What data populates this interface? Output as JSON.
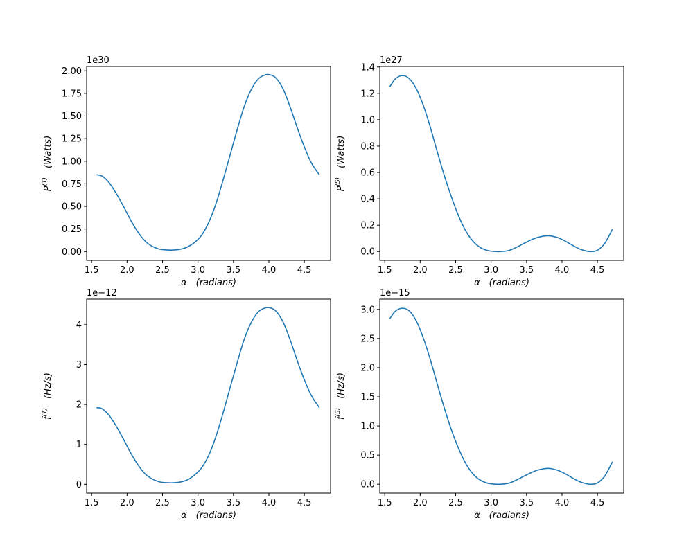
{
  "chart_data": [
    {
      "id": "PT",
      "type": "line",
      "offset_text": "1e30",
      "xlabel": {
        "var": "α",
        "unit": "(radians)"
      },
      "ylabel": {
        "base": "P",
        "sup": "(T)",
        "dot": false,
        "unit": "(Watts)"
      },
      "xlim": [
        1.43,
        4.87
      ],
      "ylim": [
        -0.0975,
        2.048
      ],
      "xticks": [
        1.5,
        2.0,
        2.5,
        3.0,
        3.5,
        4.0,
        4.5
      ],
      "xtick_labels": [
        "1.5",
        "2.0",
        "2.5",
        "3.0",
        "3.5",
        "4.0",
        "4.5"
      ],
      "yticks": [
        0.0,
        0.25,
        0.5,
        0.75,
        1.0,
        1.25,
        1.5,
        1.75,
        2.0
      ],
      "ytick_labels": [
        "0.00",
        "0.25",
        "0.50",
        "0.75",
        "1.00",
        "1.25",
        "1.50",
        "1.75",
        "2.00"
      ],
      "series": [
        {
          "color": "#1f77b4",
          "x": [
            1.571,
            1.65,
            1.75,
            1.85,
            1.95,
            2.05,
            2.15,
            2.25,
            2.35,
            2.45,
            2.55,
            2.65,
            2.75,
            2.85,
            2.95,
            3.05,
            3.15,
            3.25,
            3.35,
            3.45,
            3.55,
            3.65,
            3.75,
            3.85,
            3.95,
            4.02,
            4.1,
            4.2,
            4.3,
            4.4,
            4.5,
            4.6,
            4.712
          ],
          "y": [
            0.85,
            0.835,
            0.76,
            0.64,
            0.5,
            0.35,
            0.22,
            0.12,
            0.06,
            0.028,
            0.018,
            0.017,
            0.025,
            0.05,
            0.1,
            0.18,
            0.32,
            0.52,
            0.78,
            1.06,
            1.34,
            1.6,
            1.79,
            1.91,
            1.955,
            1.955,
            1.92,
            1.8,
            1.6,
            1.37,
            1.16,
            0.98,
            0.85
          ]
        }
      ]
    },
    {
      "id": "PS",
      "type": "line",
      "offset_text": "1e27",
      "xlabel": {
        "var": "α",
        "unit": "(radians)"
      },
      "ylabel": {
        "base": "P",
        "sup": "(S)",
        "dot": false,
        "unit": "(Watts)"
      },
      "xlim": [
        1.43,
        4.87
      ],
      "ylim": [
        -0.067,
        1.404
      ],
      "xticks": [
        1.5,
        2.0,
        2.5,
        3.0,
        3.5,
        4.0,
        4.5
      ],
      "xtick_labels": [
        "1.5",
        "2.0",
        "2.5",
        "3.0",
        "3.5",
        "4.0",
        "4.5"
      ],
      "yticks": [
        0.0,
        0.2,
        0.4,
        0.6,
        0.8,
        1.0,
        1.2,
        1.4
      ],
      "ytick_labels": [
        "0.0",
        "0.2",
        "0.4",
        "0.6",
        "0.8",
        "1.0",
        "1.2",
        "1.4"
      ],
      "series": [
        {
          "color": "#1f77b4",
          "x": [
            1.571,
            1.65,
            1.75,
            1.85,
            1.95,
            2.05,
            2.15,
            2.25,
            2.35,
            2.45,
            2.55,
            2.65,
            2.75,
            2.85,
            2.95,
            3.05,
            3.14,
            3.25,
            3.35,
            3.45,
            3.55,
            3.65,
            3.75,
            3.8,
            3.85,
            3.95,
            4.05,
            4.15,
            4.25,
            4.35,
            4.42,
            4.5,
            4.6,
            4.712
          ],
          "y": [
            1.25,
            1.31,
            1.335,
            1.31,
            1.23,
            1.1,
            0.93,
            0.74,
            0.56,
            0.4,
            0.26,
            0.15,
            0.075,
            0.03,
            0.008,
            0.001,
            0.0,
            0.008,
            0.03,
            0.058,
            0.085,
            0.106,
            0.118,
            0.12,
            0.118,
            0.104,
            0.078,
            0.047,
            0.019,
            0.003,
            0.0,
            0.01,
            0.06,
            0.17
          ]
        }
      ]
    },
    {
      "id": "fdotT",
      "type": "line",
      "offset_text": "1e−12",
      "xlabel": {
        "var": "α",
        "unit": "(radians)"
      },
      "ylabel": {
        "base": "f",
        "sup": "(T)",
        "dot": true,
        "unit": "(Hz/s)"
      },
      "xlim": [
        1.43,
        4.87
      ],
      "ylim": [
        -0.22,
        4.64
      ],
      "xticks": [
        1.5,
        2.0,
        2.5,
        3.0,
        3.5,
        4.0,
        4.5
      ],
      "xtick_labels": [
        "1.5",
        "2.0",
        "2.5",
        "3.0",
        "3.5",
        "4.0",
        "4.5"
      ],
      "yticks": [
        0,
        1,
        2,
        3,
        4
      ],
      "ytick_labels": [
        "0",
        "1",
        "2",
        "3",
        "4"
      ],
      "series": [
        {
          "color": "#1f77b4",
          "x": [
            1.571,
            1.65,
            1.75,
            1.85,
            1.95,
            2.05,
            2.15,
            2.25,
            2.35,
            2.45,
            2.55,
            2.65,
            2.75,
            2.85,
            2.95,
            3.05,
            3.15,
            3.25,
            3.35,
            3.45,
            3.55,
            3.65,
            3.75,
            3.85,
            3.95,
            4.02,
            4.1,
            4.2,
            4.3,
            4.4,
            4.5,
            4.6,
            4.712
          ],
          "y": [
            1.92,
            1.89,
            1.72,
            1.45,
            1.13,
            0.79,
            0.5,
            0.27,
            0.14,
            0.064,
            0.041,
            0.039,
            0.057,
            0.11,
            0.23,
            0.41,
            0.72,
            1.18,
            1.76,
            2.4,
            3.03,
            3.62,
            4.05,
            4.32,
            4.42,
            4.42,
            4.34,
            4.07,
            3.62,
            3.1,
            2.62,
            2.22,
            1.92
          ]
        }
      ]
    },
    {
      "id": "fdotS",
      "type": "line",
      "offset_text": "1e−15",
      "xlabel": {
        "var": "α",
        "unit": "(radians)"
      },
      "ylabel": {
        "base": "f",
        "sup": "(S)",
        "dot": true,
        "unit": "(Hz/s)"
      },
      "xlim": [
        1.43,
        4.87
      ],
      "ylim": [
        -0.152,
        3.176
      ],
      "xticks": [
        1.5,
        2.0,
        2.5,
        3.0,
        3.5,
        4.0,
        4.5
      ],
      "xtick_labels": [
        "1.5",
        "2.0",
        "2.5",
        "3.0",
        "3.5",
        "4.0",
        "4.5"
      ],
      "yticks": [
        0.0,
        0.5,
        1.0,
        1.5,
        2.0,
        2.5,
        3.0
      ],
      "ytick_labels": [
        "0.0",
        "0.5",
        "1.0",
        "1.5",
        "2.0",
        "2.5",
        "3.0"
      ],
      "series": [
        {
          "color": "#1f77b4",
          "x": [
            1.571,
            1.65,
            1.75,
            1.85,
            1.95,
            2.05,
            2.15,
            2.25,
            2.35,
            2.45,
            2.55,
            2.65,
            2.75,
            2.85,
            2.95,
            3.05,
            3.14,
            3.25,
            3.35,
            3.45,
            3.55,
            3.65,
            3.75,
            3.8,
            3.85,
            3.95,
            4.05,
            4.15,
            4.25,
            4.35,
            4.42,
            4.5,
            4.6,
            4.712
          ],
          "y": [
            2.84,
            2.97,
            3.02,
            2.97,
            2.79,
            2.49,
            2.11,
            1.68,
            1.27,
            0.9,
            0.59,
            0.34,
            0.17,
            0.068,
            0.018,
            0.002,
            0.0,
            0.018,
            0.068,
            0.13,
            0.19,
            0.24,
            0.267,
            0.272,
            0.267,
            0.235,
            0.177,
            0.106,
            0.043,
            0.007,
            0.0,
            0.023,
            0.135,
            0.385
          ]
        }
      ]
    }
  ]
}
